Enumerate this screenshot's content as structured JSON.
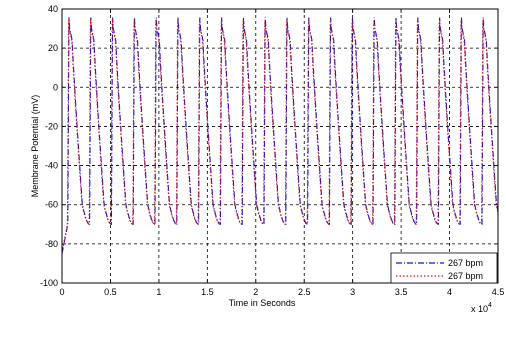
{
  "chart_data": {
    "type": "line",
    "title": "",
    "xlabel": "Time in Seconds",
    "ylabel": "Membrane Potential (mV)",
    "x_exponent_label": "x 10",
    "x_exponent_power": "4",
    "xlim": [
      0,
      4.5
    ],
    "ylim": [
      -100,
      40
    ],
    "xticks": [
      "0",
      "0.5",
      "1",
      "1.5",
      "2",
      "2.5",
      "3",
      "3.5",
      "4",
      "4.5"
    ],
    "yticks": [
      "40",
      "20",
      "0",
      "-20",
      "-40",
      "-60",
      "-80",
      "-100"
    ],
    "grid": true,
    "legend_position": "bottom-right",
    "waveform": {
      "beat_period": 0.225,
      "first_upstroke": 0.06,
      "initial_potential": -85,
      "resting_potential": -70,
      "peak_potential": 36,
      "plateau_potential": 30,
      "repolarized_potential": -60,
      "end_value": -65
    },
    "series": [
      {
        "name": "267 bpm",
        "color": "#1414d2",
        "style": "dash-dot",
        "phase_offset": 0.0
      },
      {
        "name": "267 bpm",
        "color": "#d21414",
        "style": "dotted",
        "phase_offset": 0.004
      }
    ]
  }
}
